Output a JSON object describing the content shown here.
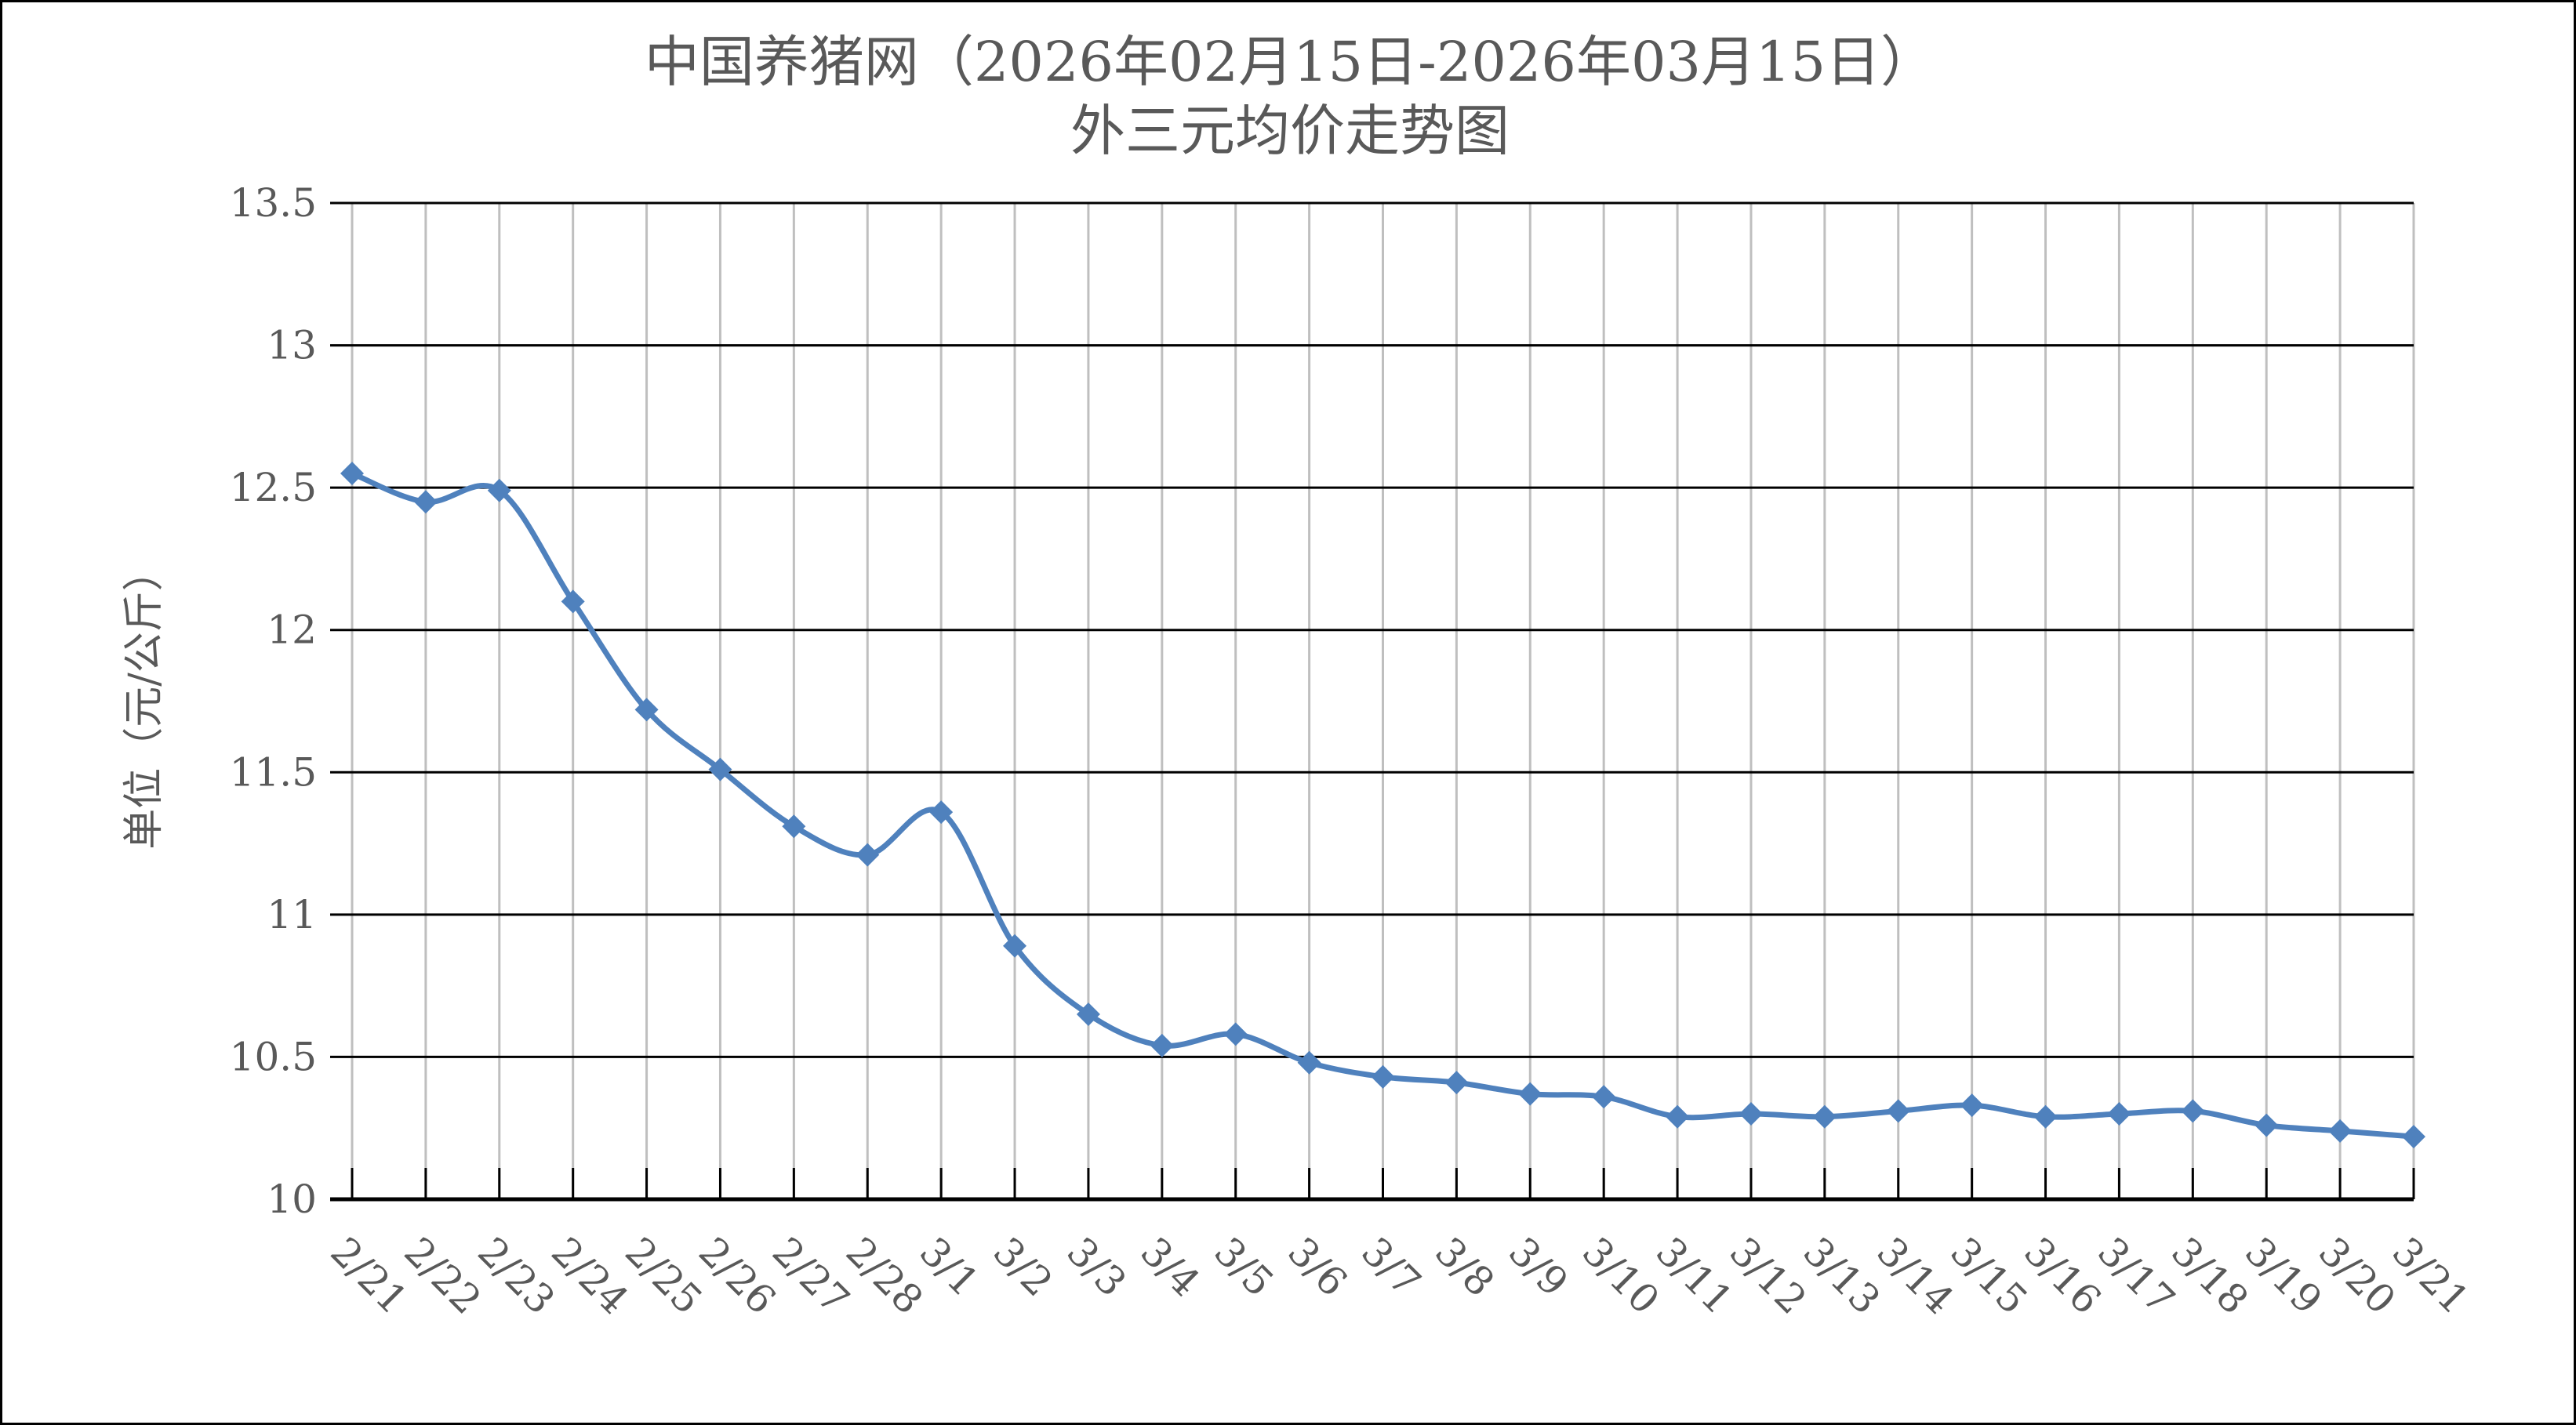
{
  "chart_data": {
    "type": "line",
    "title": "中国养猪网（2026年02月15日-2026年03月15日）",
    "subtitle": "外三元均价走势图",
    "xlabel": "",
    "ylabel": "单位（元/公斤）",
    "ylim": [
      10,
      13.5
    ],
    "yticks": [
      10,
      10.5,
      11,
      11.5,
      12,
      12.5,
      13,
      13.5
    ],
    "ytick_labels": [
      "10",
      "10.5",
      "11",
      "11.5",
      "12",
      "12.5",
      "13",
      "13.5"
    ],
    "grid": true,
    "legend": "none",
    "categories": [
      "2/21",
      "2/22",
      "2/23",
      "2/24",
      "2/25",
      "2/26",
      "2/27",
      "2/28",
      "3/1",
      "3/2",
      "3/3",
      "3/4",
      "3/5",
      "3/6",
      "3/7",
      "3/8",
      "3/9",
      "3/10",
      "3/11",
      "3/12",
      "3/13",
      "3/14",
      "3/15",
      "3/16",
      "3/17",
      "3/18",
      "3/19",
      "3/20",
      "3/21"
    ],
    "series": [
      {
        "name": "外三元均价",
        "color": "#4f81bd",
        "values": [
          12.55,
          12.45,
          12.49,
          12.1,
          11.72,
          11.51,
          11.31,
          11.21,
          11.36,
          10.89,
          10.65,
          10.54,
          10.58,
          10.48,
          10.43,
          10.41,
          10.37,
          10.36,
          10.29,
          10.3,
          10.29,
          10.31,
          10.33,
          10.29,
          10.3,
          10.31,
          10.26,
          10.24,
          10.22
        ]
      }
    ]
  }
}
